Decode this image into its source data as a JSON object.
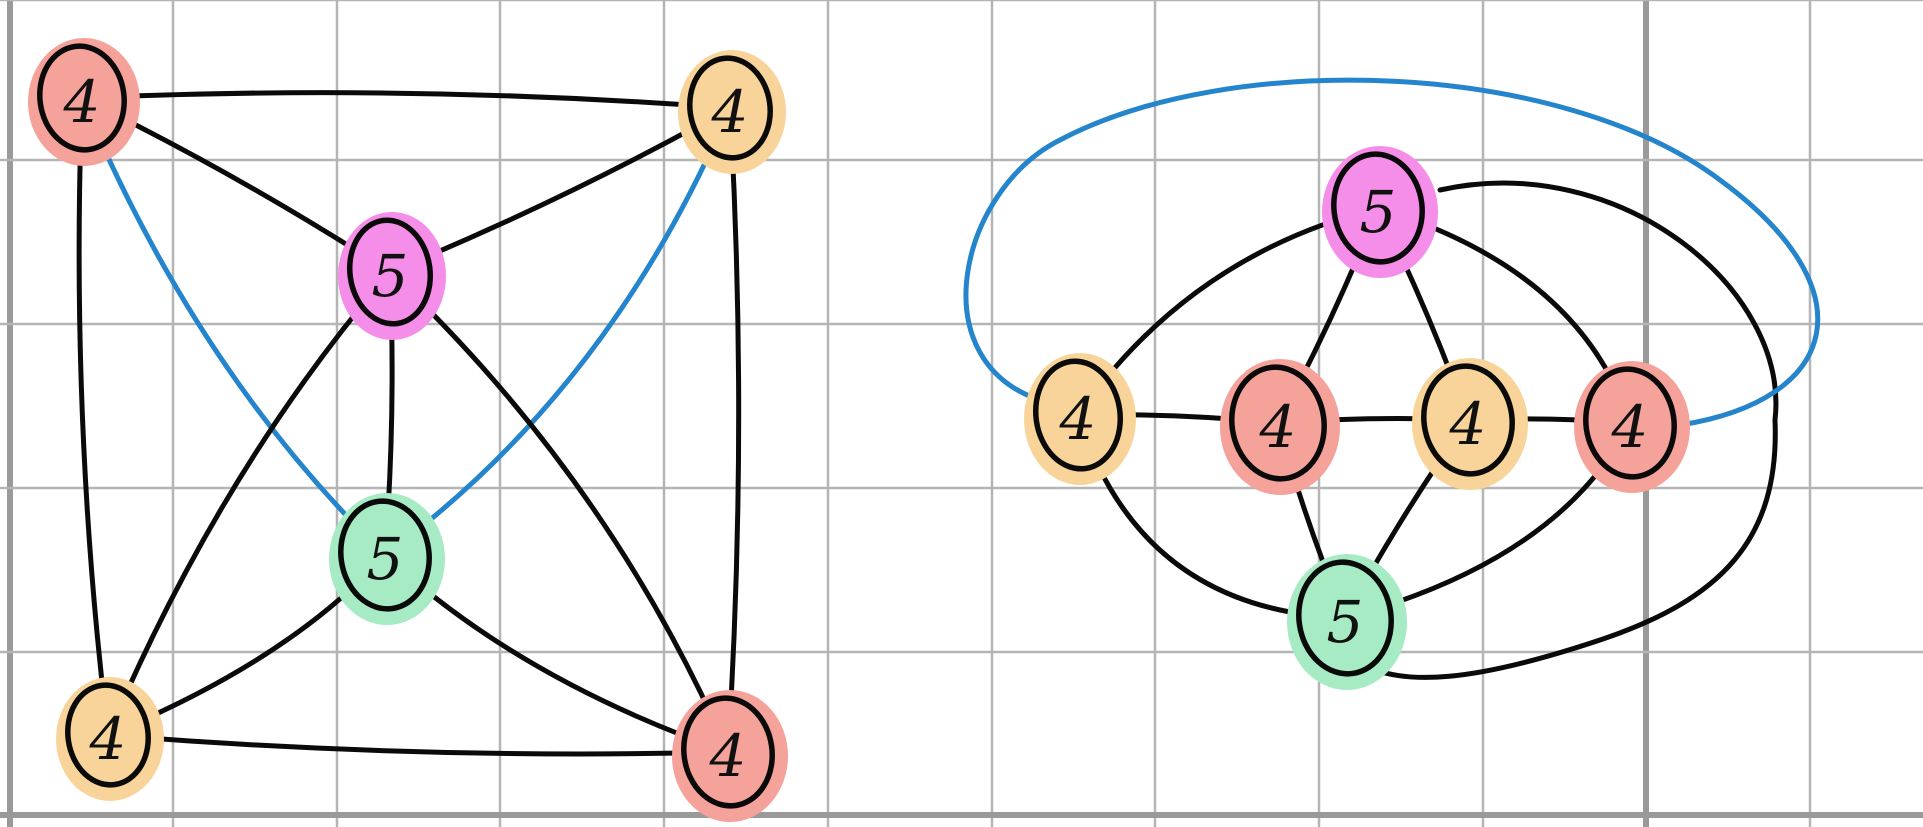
{
  "colors": {
    "red": "#f4a29a",
    "orange": "#f9d49a",
    "pink": "#f58ee8",
    "green": "#a6ebc4",
    "edge": "#0a0a0a",
    "edge_highlight": "#2484cc",
    "grid": "#b5b5b5",
    "grid_major": "#9a9a9a"
  },
  "graphs": [
    {
      "id": "left",
      "nodes": [
        {
          "id": "TL",
          "label": "4",
          "color": "red"
        },
        {
          "id": "TR",
          "label": "4",
          "color": "orange"
        },
        {
          "id": "TS",
          "label": "5",
          "color": "pink"
        },
        {
          "id": "CS",
          "label": "5",
          "color": "green"
        },
        {
          "id": "BL",
          "label": "4",
          "color": "orange"
        },
        {
          "id": "BR",
          "label": "4",
          "color": "red"
        }
      ],
      "edges": [
        {
          "from": "TL",
          "to": "TR",
          "highlight": false
        },
        {
          "from": "TL",
          "to": "TS",
          "highlight": false
        },
        {
          "from": "TL",
          "to": "BL",
          "highlight": false
        },
        {
          "from": "TL",
          "to": "CS",
          "highlight": true
        },
        {
          "from": "TR",
          "to": "TS",
          "highlight": false
        },
        {
          "from": "TR",
          "to": "BR",
          "highlight": false
        },
        {
          "from": "TR",
          "to": "CS",
          "highlight": true
        },
        {
          "from": "TS",
          "to": "CS",
          "highlight": false
        },
        {
          "from": "TS",
          "to": "BL",
          "highlight": false
        },
        {
          "from": "TS",
          "to": "BR",
          "highlight": false
        },
        {
          "from": "CS",
          "to": "BL",
          "highlight": false
        },
        {
          "from": "CS",
          "to": "BR",
          "highlight": false
        },
        {
          "from": "BL",
          "to": "BR",
          "highlight": false
        }
      ]
    },
    {
      "id": "right",
      "nodes": [
        {
          "id": "A",
          "label": "4",
          "color": "orange"
        },
        {
          "id": "B",
          "label": "4",
          "color": "red"
        },
        {
          "id": "C",
          "label": "4",
          "color": "orange"
        },
        {
          "id": "D",
          "label": "4",
          "color": "red"
        },
        {
          "id": "P",
          "label": "5",
          "color": "pink"
        },
        {
          "id": "G",
          "label": "5",
          "color": "green"
        }
      ],
      "edges": [
        {
          "from": "A",
          "to": "B",
          "highlight": false
        },
        {
          "from": "B",
          "to": "C",
          "highlight": false
        },
        {
          "from": "C",
          "to": "D",
          "highlight": false
        },
        {
          "from": "P",
          "to": "A",
          "highlight": false
        },
        {
          "from": "P",
          "to": "B",
          "highlight": false
        },
        {
          "from": "P",
          "to": "C",
          "highlight": false
        },
        {
          "from": "P",
          "to": "D",
          "highlight": false
        },
        {
          "from": "P",
          "to": "G",
          "highlight": false
        },
        {
          "from": "G",
          "to": "A",
          "highlight": false
        },
        {
          "from": "G",
          "to": "B",
          "highlight": false
        },
        {
          "from": "G",
          "to": "C",
          "highlight": false
        },
        {
          "from": "G",
          "to": "D",
          "highlight": false
        },
        {
          "from": "A",
          "to": "D",
          "highlight": true
        }
      ]
    }
  ]
}
